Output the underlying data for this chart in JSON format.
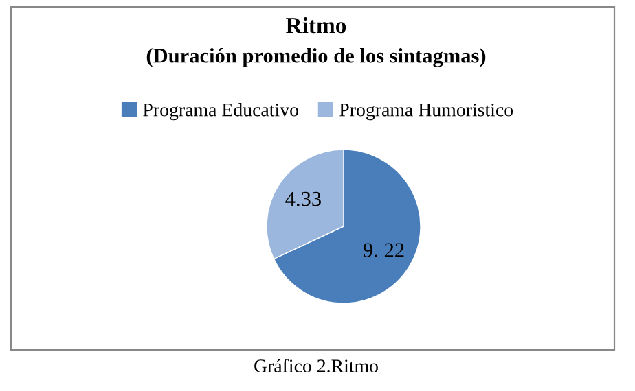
{
  "chart_data": {
    "type": "pie",
    "title": "Ritmo",
    "subtitle": "(Duración promedio de los sintagmas)",
    "categories": [
      "Programa Educativo",
      "Programa Humoristico"
    ],
    "values": [
      9.22,
      4.33
    ],
    "value_labels": [
      "9. 22",
      "4.33"
    ],
    "colors": [
      "#4a7ebb",
      "#9bb7dd"
    ],
    "legend": "top",
    "annotations": [
      "Gráfico 2.Ritmo"
    ]
  }
}
